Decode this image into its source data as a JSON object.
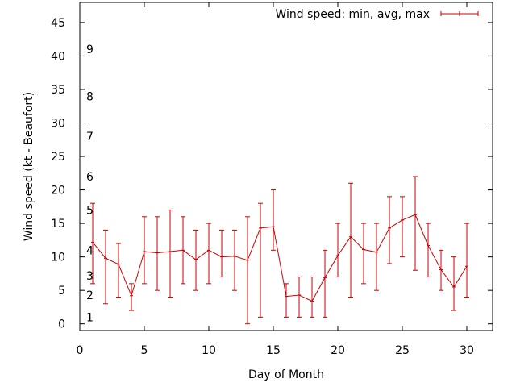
{
  "chart_data": {
    "type": "line",
    "title": "",
    "xlabel": "Day of Month",
    "ylabel": "Wind speed (kt - Beaufort)",
    "xlim": [
      0,
      32
    ],
    "ylim": [
      -1,
      48
    ],
    "x_ticks": [
      0,
      5,
      10,
      15,
      20,
      25,
      30
    ],
    "y_ticks": [
      0,
      5,
      10,
      15,
      20,
      25,
      30,
      35,
      40,
      45
    ],
    "grid": false,
    "legend_position": "top-right",
    "colors": {
      "series": "#cc0000",
      "axis": "#000000"
    },
    "beaufort_labels": [
      {
        "label": "1",
        "y": 1
      },
      {
        "label": "2",
        "y": 4.3
      },
      {
        "label": "3",
        "y": 7.2
      },
      {
        "label": "4",
        "y": 11
      },
      {
        "label": "5",
        "y": 17
      },
      {
        "label": "6",
        "y": 22
      },
      {
        "label": "7",
        "y": 28
      },
      {
        "label": "8",
        "y": 34
      },
      {
        "label": "9",
        "y": 41
      }
    ],
    "series": [
      {
        "name": "Wind speed: min, avg, max",
        "x": [
          1,
          2,
          3,
          4,
          5,
          6,
          7,
          8,
          9,
          10,
          11,
          12,
          13,
          14,
          15,
          16,
          17,
          18,
          19,
          20,
          21,
          22,
          23,
          24,
          25,
          26,
          27,
          28,
          29,
          30
        ],
        "avg": [
          12.2,
          9.8,
          8.9,
          4.2,
          10.8,
          10.6,
          10.8,
          11,
          9.6,
          11,
          10,
          10.1,
          9.5,
          14.3,
          14.5,
          4.1,
          4.3,
          3.4,
          6.9,
          10.2,
          13,
          11.1,
          10.7,
          14.3,
          15.5,
          16.3,
          11.7,
          8.1,
          5.5,
          8.6
        ],
        "min": [
          6,
          3,
          4,
          2,
          6,
          5,
          4,
          6,
          5,
          6,
          7,
          5,
          0,
          1,
          11,
          1,
          1,
          1,
          1,
          7,
          4,
          6,
          5,
          9,
          10,
          8,
          7,
          5,
          2,
          4
        ],
        "max": [
          18,
          14,
          12,
          6,
          16,
          16,
          17,
          16,
          14,
          15,
          14,
          14,
          16,
          18,
          20,
          6,
          7,
          7,
          11,
          15,
          21,
          15,
          15,
          19,
          19,
          22,
          15,
          11,
          10,
          15
        ]
      }
    ]
  }
}
